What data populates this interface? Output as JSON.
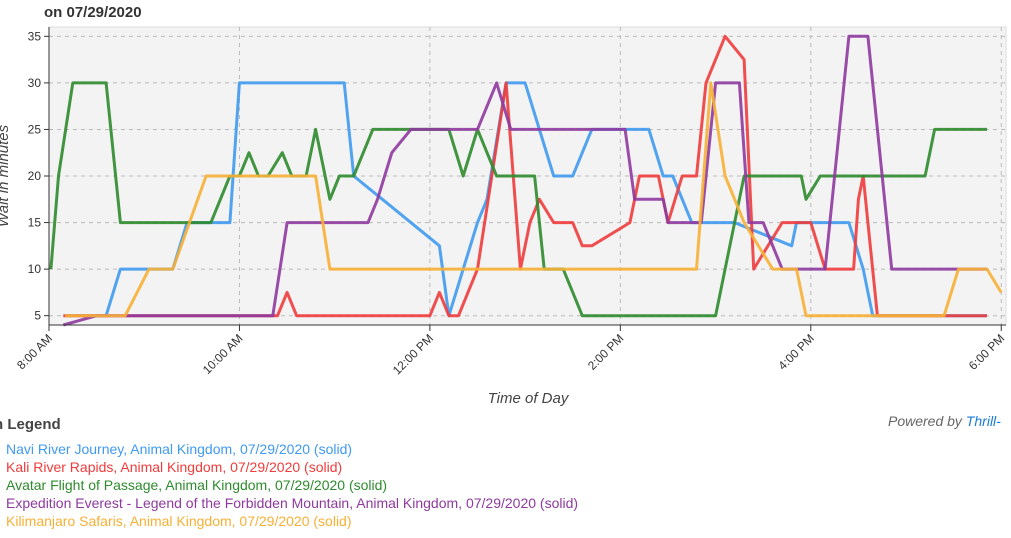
{
  "header": {
    "title": "on 07/29/2020"
  },
  "legend": {
    "title": "n Legend"
  },
  "footer": {
    "powered_by": "Powered by",
    "powered_link": "Thrill-"
  },
  "chart_data": {
    "type": "line",
    "title": "on 07/29/2020",
    "xlabel": "Time of Day",
    "ylabel": "Wait in minutes",
    "x_unit": "hours (24h clock)",
    "xlim": [
      8,
      18.05
    ],
    "ylim": [
      4,
      36
    ],
    "y_ticks": [
      5,
      10,
      15,
      20,
      25,
      30,
      35
    ],
    "x_ticks": [
      {
        "x": 8,
        "label": "8:00 AM"
      },
      {
        "x": 10,
        "label": "10:00 AM"
      },
      {
        "x": 12,
        "label": "12:00 PM"
      },
      {
        "x": 14,
        "label": "2:00 PM"
      },
      {
        "x": 16,
        "label": "4:00 PM"
      },
      {
        "x": 18,
        "label": "6:00 PM"
      }
    ],
    "grid": true,
    "series": [
      {
        "name": "Navi River Journey, Animal Kingdom, 07/29/2020 (solid)",
        "color": "#3f9af0",
        "x": [
          8.17,
          8.6,
          8.75,
          9.3,
          9.45,
          9.9,
          10.0,
          11.1,
          11.2,
          12.1,
          12.2,
          12.35,
          12.5,
          12.6,
          12.8,
          13.0,
          13.3,
          13.5,
          13.7,
          13.85,
          14.0,
          14.2,
          14.3,
          14.45,
          14.55,
          14.75,
          14.9,
          15.2,
          15.8,
          15.85,
          15.95,
          16.05,
          16.4,
          16.55,
          16.65,
          16.7,
          17.5,
          17.8,
          17.85
        ],
        "y": [
          5,
          5,
          10,
          10,
          15,
          15,
          30,
          30,
          20,
          12.5,
          5,
          10,
          15,
          17.5,
          30,
          30,
          20,
          20,
          25,
          25,
          25,
          25,
          25,
          20,
          20,
          15,
          15,
          15,
          12.5,
          15,
          15,
          15,
          15,
          10,
          5,
          5,
          5,
          5,
          5
        ]
      },
      {
        "name": "Kali River Rapids, Animal Kingdom, 07/29/2020 (solid)",
        "color": "#f03c3c",
        "x": [
          8.15,
          8.5,
          8.9,
          10.4,
          10.5,
          10.6,
          12.0,
          12.1,
          12.2,
          12.3,
          12.5,
          12.8,
          12.95,
          13.05,
          13.15,
          13.3,
          13.5,
          13.6,
          13.7,
          14.1,
          14.2,
          14.4,
          14.5,
          14.65,
          14.8,
          14.9,
          15.1,
          15.3,
          15.4,
          15.7,
          16.0,
          16.15,
          16.3,
          16.45,
          16.5,
          16.55,
          16.6,
          16.7,
          17.0,
          17.8,
          17.85
        ],
        "y": [
          5,
          5,
          5,
          5,
          7.5,
          5,
          5,
          7.5,
          5,
          5,
          10,
          30,
          10,
          15,
          17.5,
          15,
          15,
          12.5,
          12.5,
          15,
          20,
          20,
          15,
          20,
          20,
          30,
          35,
          32.5,
          10,
          15,
          15,
          10,
          10,
          10,
          17.5,
          20,
          15,
          5,
          5,
          5,
          5
        ]
      },
      {
        "name": "Avatar Flight of Passage, Animal Kingdom, 07/29/2020 (solid)",
        "color": "#2e8b2e",
        "x": [
          8.02,
          8.1,
          8.25,
          8.6,
          8.75,
          9.0,
          9.7,
          9.9,
          10.0,
          10.1,
          10.2,
          10.3,
          10.45,
          10.55,
          10.7,
          10.8,
          10.95,
          11.05,
          11.2,
          11.4,
          11.5,
          11.65,
          12.0,
          12.2,
          12.35,
          12.5,
          12.7,
          12.85,
          13.0,
          13.1,
          13.2,
          13.4,
          13.6,
          13.9,
          14.3,
          15.0,
          15.1,
          15.2,
          15.3,
          15.5,
          15.8,
          15.9,
          15.95,
          16.1,
          16.5,
          16.85,
          17.1,
          17.2,
          17.3,
          17.4,
          17.7,
          17.85
        ],
        "y": [
          10,
          20,
          30,
          30,
          15,
          15,
          15,
          20,
          20,
          22.5,
          20,
          20,
          22.5,
          20,
          20,
          25,
          17.5,
          20,
          20,
          25,
          25,
          25,
          25,
          25,
          20,
          25,
          20,
          20,
          20,
          20,
          10,
          10,
          5,
          5,
          5,
          5,
          10,
          15,
          20,
          20,
          20,
          20,
          17.5,
          20,
          20,
          20,
          20,
          20,
          25,
          25,
          25,
          25
        ]
      },
      {
        "name": "Expedition Everest - Legend of the Forbidden Mountain, Animal Kingdom, 07/29/2020 (solid)",
        "color": "#8e3a9e",
        "x": [
          8.15,
          8.5,
          9.5,
          10.35,
          10.5,
          11.35,
          11.45,
          11.6,
          11.8,
          12.3,
          12.4,
          12.5,
          12.7,
          12.85,
          13.0,
          13.3,
          13.6,
          14.05,
          14.15,
          14.45,
          14.5,
          14.6,
          14.75,
          14.85,
          15.0,
          15.25,
          15.35,
          15.5,
          15.7,
          15.85,
          16.0,
          16.15,
          16.4,
          16.45,
          16.6,
          16.85,
          17.0,
          17.5,
          17.85
        ],
        "y": [
          4,
          5,
          5,
          5,
          15,
          15,
          17.5,
          22.5,
          25,
          25,
          25,
          25,
          30,
          25,
          25,
          25,
          25,
          25,
          17.5,
          17.5,
          15,
          15,
          15,
          15,
          30,
          30,
          15,
          15,
          10,
          10,
          10,
          10,
          35,
          35,
          35,
          10,
          10,
          10,
          10
        ]
      },
      {
        "name": "Kilimanjaro Safaris, Animal Kingdom, 07/29/2020 (solid)",
        "color": "#f7b035",
        "x": [
          8.17,
          8.5,
          8.8,
          9.05,
          9.3,
          9.65,
          10.0,
          10.55,
          10.8,
          10.95,
          12.0,
          12.6,
          13.4,
          14.4,
          14.8,
          14.95,
          15.1,
          15.3,
          15.6,
          15.85,
          15.95,
          16.5,
          16.7,
          17.4,
          17.55,
          17.65,
          17.85,
          18.0
        ],
        "y": [
          5,
          5,
          5,
          10,
          10,
          20,
          20,
          20,
          20,
          10,
          10,
          10,
          10,
          10,
          10,
          30,
          20,
          15,
          10,
          10,
          5,
          5,
          5,
          5,
          10,
          10,
          10,
          7.5
        ]
      }
    ]
  }
}
